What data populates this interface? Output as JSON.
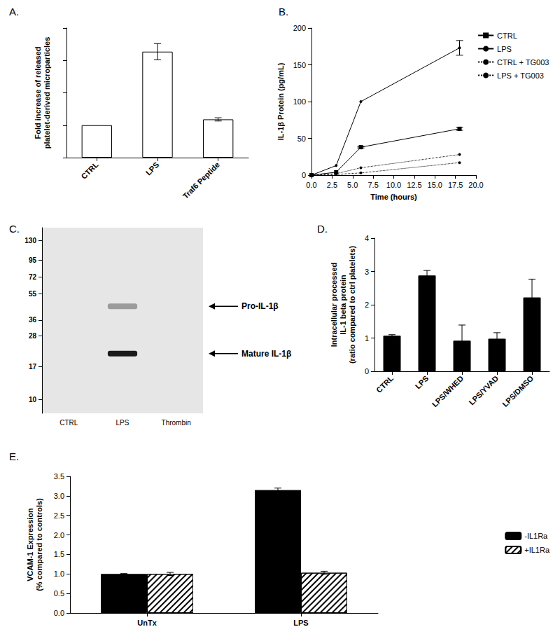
{
  "chart_data": [
    {
      "title": "A.",
      "type": "bar",
      "categories": [
        "CTRL",
        "LPS",
        "Traf6 Peptide"
      ],
      "values": [
        1,
        3.27,
        1.18
      ],
      "errors": [
        null,
        0.25,
        0.05
      ],
      "color": "#ffffff",
      "y_label": "Fold increase of released\nplatelet-derived microparticles",
      "ylim": [
        0,
        4
      ],
      "yticks": [
        0,
        1,
        2,
        3,
        4
      ],
      "tick_labels": "x",
      "grid": false
    },
    {
      "title": "B.",
      "type": "line",
      "x": [
        0,
        3,
        6,
        18
      ],
      "series": [
        {
          "name": "CTRL",
          "values": [
            0,
            4,
            38,
            63
          ],
          "errors": [
            null,
            null,
            1,
            2
          ],
          "color": "#000000",
          "marker": "square",
          "line_style": "solid"
        },
        {
          "name": "LPS",
          "values": [
            0,
            13,
            100,
            173
          ],
          "errors": [
            null,
            null,
            null,
            10
          ],
          "color": "#000000",
          "marker": "circle",
          "line_style": "solid"
        },
        {
          "name": "CTRL + TG003",
          "values": [
            0,
            2,
            10,
            28
          ],
          "errors": [
            null,
            null,
            null,
            null
          ],
          "color": "#000000",
          "marker": "circle",
          "line_style": "dotted"
        },
        {
          "name": "LPS + TG003",
          "values": [
            0,
            1,
            3,
            17
          ],
          "errors": [
            null,
            null,
            null,
            null
          ],
          "color": "#000000",
          "marker": "circle",
          "line_style": "dotted"
        }
      ],
      "x_label": "Time (hours)",
      "y_label": "IL-1β Protein (pg/mL)",
      "xlim": [
        0,
        20
      ],
      "xticks": [
        {
          "value": 0,
          "label": "0.0"
        },
        {
          "value": 2.5,
          "label": "2.5"
        },
        {
          "value": 5,
          "label": "5.0"
        },
        {
          "value": 7.5,
          "label": "7.5"
        },
        {
          "value": 10,
          "label": "10.0"
        },
        {
          "value": 12.5,
          "label": "12.5"
        },
        {
          "value": 15,
          "label": "15.0"
        },
        {
          "value": 17.5,
          "label": "17.5"
        },
        {
          "value": 20,
          "label": "20.0"
        }
      ],
      "ylim": [
        0,
        200
      ],
      "yticks": [
        0,
        50,
        100,
        150,
        200
      ],
      "legend": "right",
      "grid": false
    },
    {
      "title": "C.",
      "type": "blot",
      "categories": [
        "CTRL",
        "LPS",
        "Thrombin"
      ],
      "ylim": [
        8,
        160
      ],
      "yticks": [
        10,
        17,
        28,
        36,
        55,
        72,
        95,
        130
      ],
      "log": "y",
      "bands": [
        {
          "lane": "LPS",
          "value": 45,
          "intensity": 0.35,
          "label": "Pro-IL-1β"
        },
        {
          "lane": "LPS",
          "value": 21,
          "intensity": 0.95,
          "label": "Mature IL-1β"
        }
      ],
      "grid": false
    },
    {
      "title": "D.",
      "type": "bar",
      "categories": [
        "CTRL",
        "LPS",
        "LPS/WHED",
        "LPS/YVAD",
        "LPS/DMSO"
      ],
      "values": [
        1.07,
        2.88,
        0.92,
        0.98,
        2.22
      ],
      "errors": [
        0.03,
        0.15,
        0.47,
        0.18,
        0.55
      ],
      "color": "#000000",
      "y_label": "Intracellular processed\nIL-1 beta protein\n(ratio compared to ctrl platelets)",
      "ylim": [
        0,
        4
      ],
      "yticks": [
        0,
        1,
        2,
        3,
        4
      ],
      "grid": false
    },
    {
      "title": "E.",
      "type": "bar",
      "categories": [
        "UnTx",
        "LPS"
      ],
      "series": [
        {
          "name": "-IL1Ra",
          "values": [
            1.0,
            3.15
          ],
          "errors": [
            0.01,
            0.05
          ],
          "color": "#000000"
        },
        {
          "name": "+IL1Ra",
          "values": [
            1.0,
            1.03
          ],
          "errors": [
            0.04,
            0.04
          ],
          "color": "#ffffff"
        }
      ],
      "y_label": "VCAM-1 Expression\n(% compared to controls)",
      "ylim": [
        0,
        3.5
      ],
      "yticks": [
        {
          "value": 0,
          "label": "0.0"
        },
        {
          "value": 0.5,
          "label": "0.5"
        },
        {
          "value": 1,
          "label": "1.0"
        },
        {
          "value": 1.5,
          "label": "1.5"
        },
        {
          "value": 2,
          "label": "2.0"
        },
        {
          "value": 2.5,
          "label": "2.5"
        },
        {
          "value": 3,
          "label": "3.0"
        },
        {
          "value": 3.5,
          "label": "3.5"
        }
      ],
      "legend": "right",
      "grid": false
    }
  ]
}
